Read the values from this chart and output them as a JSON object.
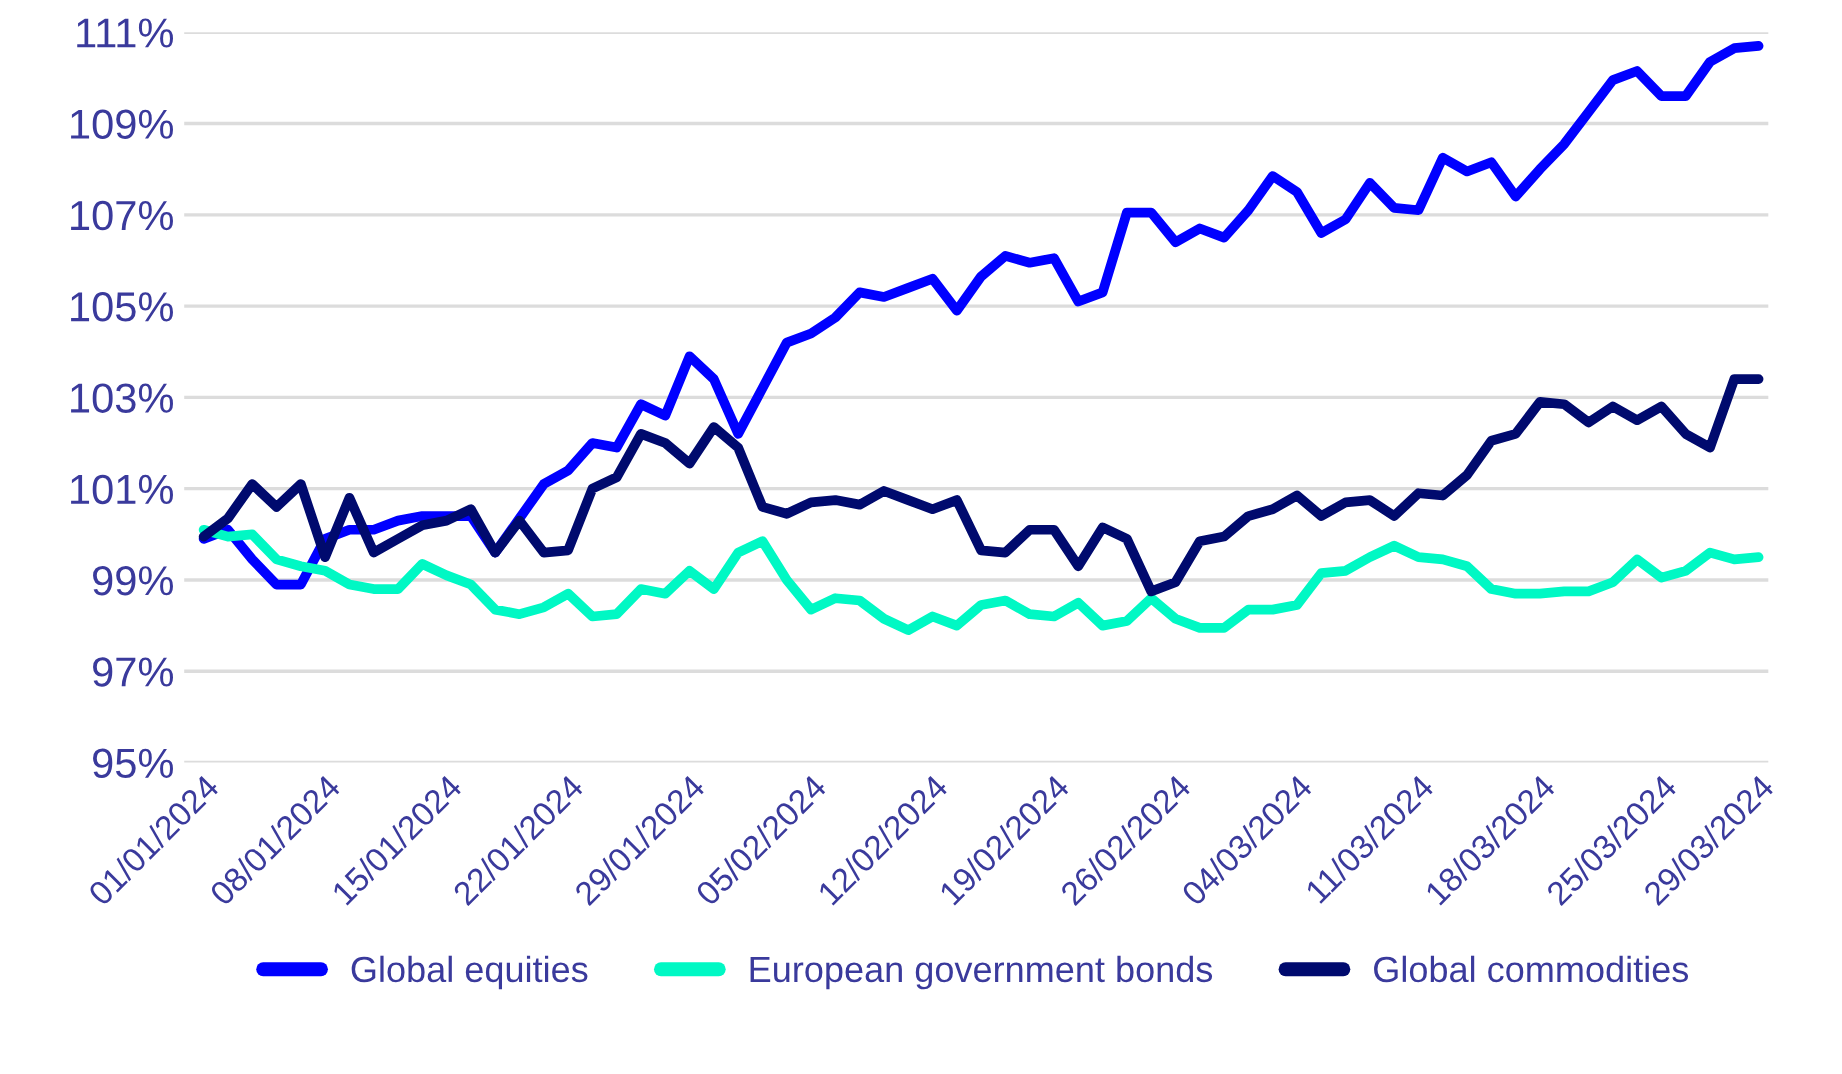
{
  "chart_data": {
    "type": "line",
    "categories": [
      "01/01/2024",
      null,
      null,
      null,
      null,
      "08/01/2024",
      null,
      null,
      null,
      null,
      "15/01/2024",
      null,
      null,
      null,
      null,
      "22/01/2024",
      null,
      null,
      null,
      null,
      "29/01/2024",
      null,
      null,
      null,
      null,
      "05/02/2024",
      null,
      null,
      null,
      null,
      "12/02/2024",
      null,
      null,
      null,
      null,
      "19/02/2024",
      null,
      null,
      null,
      null,
      "26/02/2024",
      null,
      null,
      null,
      null,
      "04/03/2024",
      null,
      null,
      null,
      null,
      "11/03/2024",
      null,
      null,
      null,
      null,
      "18/03/2024",
      null,
      null,
      null,
      null,
      "25/03/2024",
      null,
      null,
      null,
      "29/03/2024"
    ],
    "series": [
      {
        "name": "Global equities",
        "color": "#0000ff",
        "values": [
          99.9,
          100.1,
          99.45,
          98.9,
          98.9,
          99.9,
          100.1,
          100.1,
          100.3,
          100.4,
          100.4,
          100.4,
          99.6,
          100.35,
          101.1,
          101.4,
          102.0,
          101.9,
          102.85,
          102.6,
          103.9,
          103.4,
          102.2,
          103.2,
          104.2,
          104.4,
          104.75,
          105.3,
          105.2,
          105.4,
          105.6,
          104.9,
          105.65,
          106.1,
          105.95,
          106.05,
          105.1,
          105.3,
          107.05,
          107.05,
          106.4,
          106.7,
          106.5,
          107.1,
          107.85,
          107.5,
          106.6,
          106.9,
          107.7,
          107.15,
          107.1,
          108.25,
          107.95,
          108.15,
          107.4,
          108.0,
          108.55,
          109.25,
          109.95,
          110.15,
          109.6,
          109.6,
          110.35,
          110.65,
          110.7
        ]
      },
      {
        "name": "European government bonds",
        "color": "#00f8c4",
        "values": [
          100.1,
          99.95,
          100.0,
          99.45,
          99.3,
          99.2,
          98.9,
          98.8,
          98.8,
          99.35,
          99.1,
          98.9,
          98.35,
          98.25,
          98.4,
          98.7,
          98.2,
          98.25,
          98.8,
          98.7,
          99.2,
          98.8,
          99.6,
          99.85,
          99.0,
          98.35,
          98.6,
          98.55,
          98.15,
          97.9,
          98.2,
          98.0,
          98.45,
          98.55,
          98.25,
          98.2,
          98.5,
          98.0,
          98.1,
          98.6,
          98.15,
          97.95,
          97.95,
          98.35,
          98.35,
          98.45,
          99.15,
          99.2,
          99.5,
          99.75,
          99.5,
          99.45,
          99.3,
          98.8,
          98.7,
          98.7,
          98.75,
          98.75,
          98.95,
          99.45,
          99.05,
          99.2,
          99.6,
          99.45,
          99.5
        ]
      },
      {
        "name": "Global commodities",
        "color": "#000a6e",
        "values": [
          99.95,
          100.35,
          101.1,
          100.6,
          101.1,
          99.5,
          100.8,
          99.6,
          99.9,
          100.2,
          100.3,
          100.55,
          99.6,
          100.3,
          99.6,
          99.65,
          101.0,
          101.25,
          102.2,
          102.0,
          101.55,
          102.35,
          101.9,
          100.6,
          100.45,
          100.7,
          100.75,
          100.65,
          100.95,
          100.75,
          100.55,
          100.75,
          99.65,
          99.6,
          100.1,
          100.1,
          99.3,
          100.15,
          99.9,
          98.75,
          98.95,
          99.85,
          99.95,
          100.4,
          100.55,
          100.85,
          100.4,
          100.7,
          100.75,
          100.4,
          100.9,
          100.85,
          101.3,
          102.05,
          102.2,
          102.9,
          102.85,
          102.45,
          102.8,
          102.5,
          102.8,
          102.2,
          101.9,
          103.4,
          103.4
        ]
      }
    ],
    "ylim": [
      95,
      111
    ],
    "yticks": [
      {
        "value": 95,
        "label": "95%"
      },
      {
        "value": 97,
        "label": "97%"
      },
      {
        "value": 99,
        "label": "99%"
      },
      {
        "value": 101,
        "label": "101%"
      },
      {
        "value": 103,
        "label": "103%"
      },
      {
        "value": 105,
        "label": "105%"
      },
      {
        "value": 107,
        "label": "107%"
      },
      {
        "value": 109,
        "label": "109%"
      },
      {
        "value": 111,
        "label": "111%"
      }
    ],
    "grid": "y",
    "legend": "bottom",
    "marker": "none",
    "line_style": "solid"
  }
}
